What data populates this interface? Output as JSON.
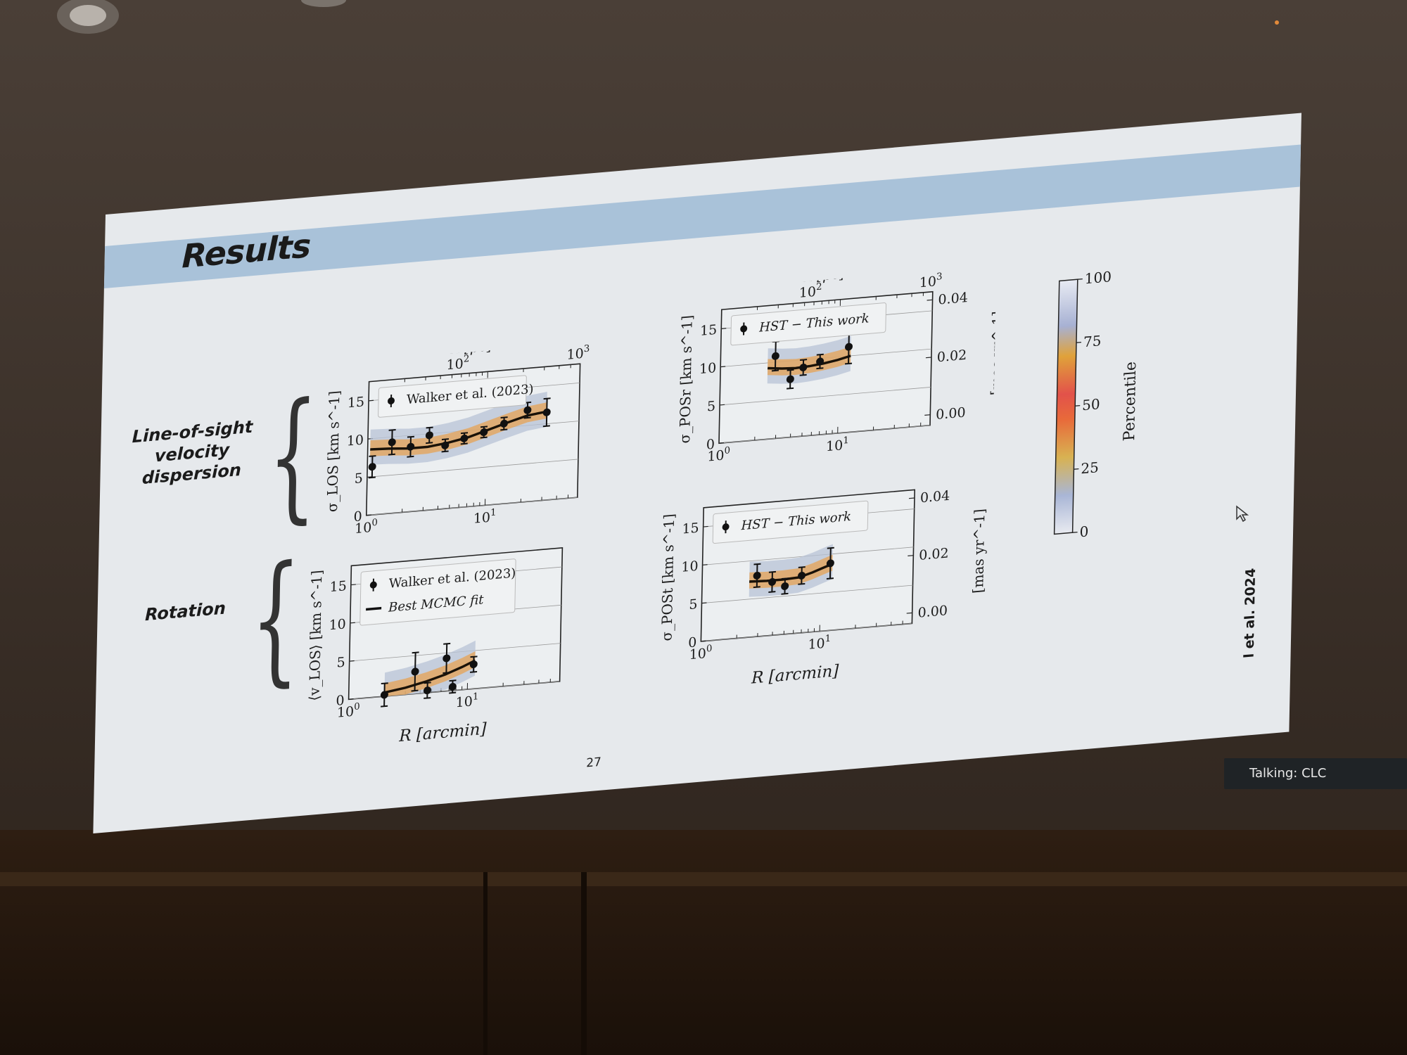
{
  "slide": {
    "title": "Results",
    "slide_number": "27",
    "section_los": [
      "Line-of-sight",
      "velocity",
      "dispersion"
    ],
    "section_rotation": "Rotation",
    "citation": "l et al. 2024"
  },
  "overlay": {
    "talking_label": "Talking: CLC"
  },
  "colorbar": {
    "label": "Percentile",
    "ticks": [
      "0",
      "25",
      "50",
      "75",
      "100"
    ],
    "tick_values": [
      0,
      25,
      50,
      75,
      100
    ]
  },
  "icons": {
    "cursor": "pointer-cursor-icon",
    "projector": "ceiling-light-icon"
  },
  "chart_data": [
    {
      "type": "line",
      "panel": "sigma-los",
      "xlabel_top": "R [pc]",
      "ylabel": "σ_LOS [km s^-1]",
      "xscale": "log",
      "xlim": [
        1,
        60
      ],
      "ylim": [
        0,
        17.5
      ],
      "x_ticks": [
        "10^0",
        "10^1"
      ],
      "top_ticks": [
        "10^2",
        "10^3"
      ],
      "y_ticks": [
        "0",
        "5",
        "10",
        "15"
      ],
      "legend": [
        "Walker et al. (2023)"
      ],
      "points": {
        "x": [
          1.1,
          1.6,
          2.3,
          3.3,
          4.5,
          6.5,
          9.5,
          14,
          22,
          32
        ],
        "y": [
          6.3,
          9.3,
          8.5,
          9.8,
          8.3,
          9.0,
          9.6,
          10.5,
          12.0,
          11.5
        ],
        "err": [
          1.4,
          1.6,
          1.3,
          1.0,
          0.8,
          0.7,
          0.7,
          0.8,
          1.0,
          1.8
        ]
      },
      "fit": {
        "x": [
          1.05,
          1.5,
          2.2,
          3.2,
          4.7,
          7,
          10,
          15,
          22,
          32
        ],
        "y": [
          8.6,
          8.5,
          8.3,
          8.3,
          8.6,
          9.1,
          9.8,
          10.6,
          11.3,
          11.6
        ]
      }
    },
    {
      "type": "line",
      "panel": "sigma-posr",
      "xlabel_top": "R [pc]",
      "ylabel": "σ_POSr [km s^-1]",
      "ylabel_right": "[mas yr^-1]",
      "xscale": "log",
      "xlim": [
        1,
        60
      ],
      "ylim": [
        0,
        17.5
      ],
      "x_ticks": [
        "10^0",
        "10^1"
      ],
      "top_ticks": [
        "10^2",
        "10^3"
      ],
      "y_ticks": [
        "0",
        "5",
        "10",
        "15"
      ],
      "right_ticks": [
        "0.00",
        "0.02",
        "0.04"
      ],
      "legend": [
        "HST − This work"
      ],
      "points": {
        "x": [
          2.9,
          3.9,
          5.0,
          6.9,
          12.0
        ],
        "y": [
          10.8,
          7.6,
          9.0,
          9.6,
          11.2
        ],
        "err": [
          1.9,
          1.2,
          1.0,
          0.9,
          2.2
        ]
      },
      "fit": {
        "x": [
          2.5,
          3.3,
          4.3,
          5.6,
          7.4,
          9.7,
          12.5
        ],
        "y": [
          9.3,
          9.1,
          9.0,
          9.1,
          9.3,
          9.6,
          10.0
        ]
      }
    },
    {
      "type": "line",
      "panel": "v-los-rotation",
      "ylabel": "⟨v_LOS⟩ [km s^-1]",
      "xlabel": "R [arcmin]",
      "xscale": "log",
      "xlim": [
        1,
        60
      ],
      "ylim": [
        0,
        17.5
      ],
      "x_ticks": [
        "10^0",
        "10^1"
      ],
      "y_ticks": [
        "0",
        "5",
        "10",
        "15"
      ],
      "legend": [
        "Walker et al. (2023)",
        "Best MCMC fit"
      ],
      "points": {
        "x": [
          2.0,
          3.6,
          4.6,
          6.6,
          7.5,
          11.2
        ],
        "y": [
          0.2,
          2.9,
          0.3,
          4.3,
          0.5,
          3.2
        ],
        "err": [
          1.5,
          2.5,
          1.0,
          1.9,
          0.8,
          1.0
        ]
      },
      "fit": {
        "x": [
          2.0,
          3,
          4.5,
          6.5,
          9,
          11.5
        ],
        "y": [
          0.5,
          0.9,
          1.5,
          2.2,
          3.0,
          3.7
        ]
      }
    },
    {
      "type": "line",
      "panel": "sigma-post",
      "ylabel": "σ_POSt [km s^-1]",
      "ylabel_right": "[mas yr^-1]",
      "xlabel": "R [arcmin]",
      "xscale": "log",
      "xlim": [
        1,
        60
      ],
      "ylim": [
        0,
        17.5
      ],
      "x_ticks": [
        "10^0",
        "10^1"
      ],
      "y_ticks": [
        "0",
        "5",
        "10",
        "15"
      ],
      "right_ticks": [
        "0.00",
        "0.02",
        "0.04"
      ],
      "legend": [
        "HST − This work"
      ],
      "points": {
        "x": [
          2.9,
          3.9,
          5.0,
          6.9,
          12.0
        ],
        "y": [
          8.0,
          7.0,
          6.3,
          7.5,
          8.8
        ],
        "err": [
          1.5,
          1.3,
          1.0,
          1.1,
          2.0
        ]
      },
      "fit": {
        "x": [
          2.5,
          3.5,
          4.8,
          6.5,
          8.5,
          10.5,
          12.5
        ],
        "y": [
          7.3,
          7.2,
          7.2,
          7.3,
          7.8,
          8.3,
          8.7
        ]
      }
    }
  ]
}
